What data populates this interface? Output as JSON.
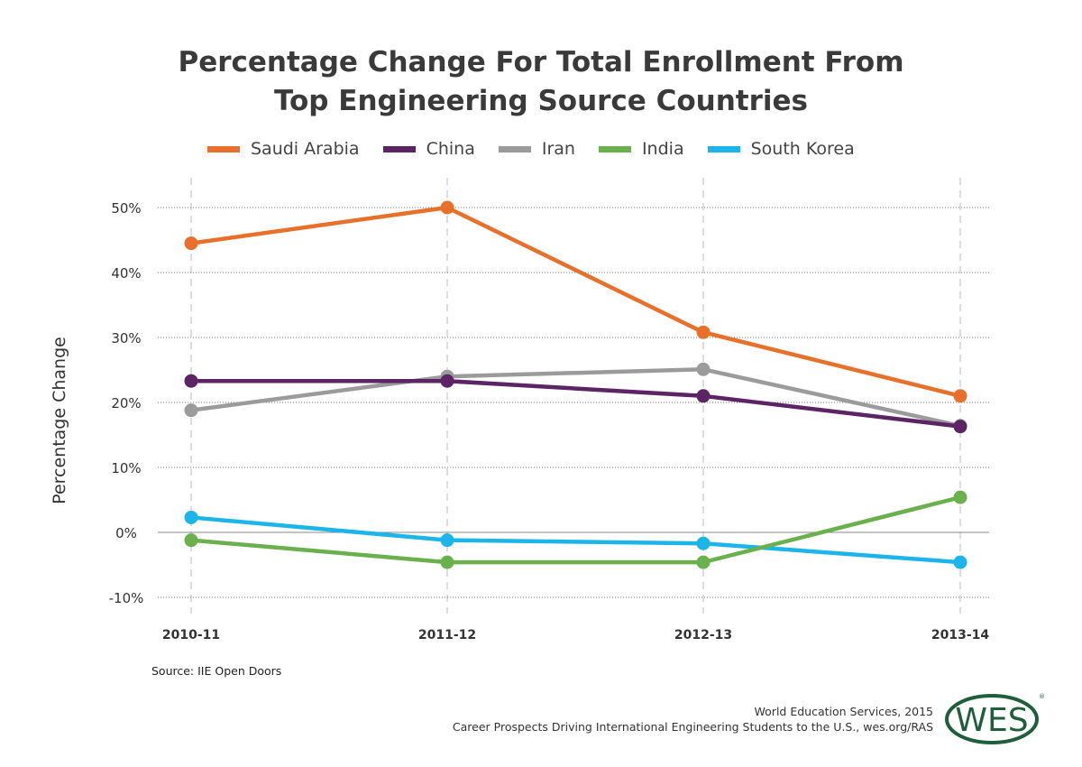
{
  "chart_data": {
    "type": "line",
    "title": "Percentage Change For Total Enrollment From Top Engineering Source Countries",
    "title_lines": [
      "Percentage Change For Total Enrollment From",
      "Top Engineering Source Countries"
    ],
    "xlabel": "",
    "ylabel": "Percentage Change",
    "categories": [
      "2010-11",
      "2011-12",
      "2012-13",
      "2013-14"
    ],
    "ylim": [
      -10,
      50
    ],
    "yticks": [
      -10,
      0,
      10,
      20,
      30,
      40,
      50
    ],
    "ytick_labels": [
      "-10%",
      "0%",
      "10%",
      "20%",
      "30%",
      "40%",
      "50%"
    ],
    "grid": true,
    "legend_position": "top",
    "series": [
      {
        "name": "Saudi Arabia",
        "color": "#E8702A",
        "values": [
          44.5,
          50,
          30.8,
          21
        ]
      },
      {
        "name": "China",
        "color": "#5C2465",
        "values": [
          23.3,
          23.3,
          21,
          16.3
        ]
      },
      {
        "name": "Iran",
        "color": "#9B9B9B",
        "values": [
          18.8,
          24,
          25.1,
          16.4
        ]
      },
      {
        "name": "India",
        "color": "#6AB04C",
        "values": [
          -1.2,
          -4.6,
          -4.6,
          5.4
        ]
      },
      {
        "name": "South Korea",
        "color": "#1CB5EA",
        "values": [
          2.3,
          -1.2,
          -1.7,
          -4.6
        ]
      }
    ]
  },
  "source": "Source: IIE Open Doors",
  "credit": {
    "line1": "World Education Services, 2015",
    "line2": "Career Prospects Driving International Engineering Students to the U.S., wes.org/RAS"
  },
  "logo": {
    "text": "WES",
    "color": "#1E5E3A"
  }
}
